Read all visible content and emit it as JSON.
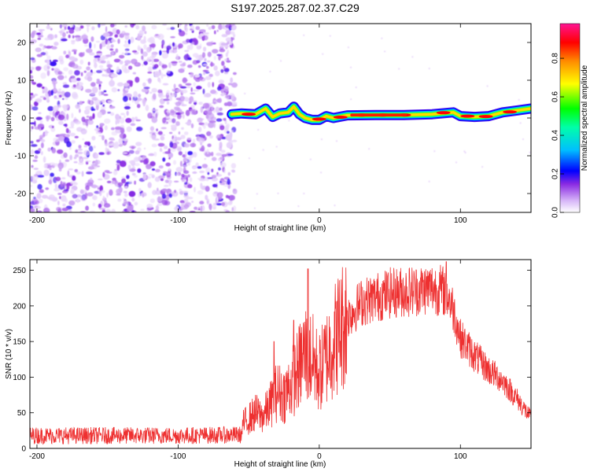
{
  "figure_title": "S197.2025.287.02.37.C29",
  "colors": {
    "snr_line": "#ee3030",
    "colormap": [
      "#f0e0ff",
      "#c89cf5",
      "#8a2be2",
      "#0000ff",
      "#00c8ff",
      "#00ff60",
      "#ffff00",
      "#ff8000",
      "#ff0000",
      "#ff1493"
    ]
  },
  "chart_data": [
    {
      "type": "heatmap",
      "title": "",
      "xlabel": "Height of straight line (km)",
      "ylabel": "Frequency (Hz)",
      "xlim": [
        -205,
        150
      ],
      "ylim": [
        -25,
        25
      ],
      "xticks": [
        -200,
        -100,
        0,
        100
      ],
      "yticks": [
        -20,
        -10,
        0,
        10,
        20
      ],
      "noise_region": {
        "x": [
          -205,
          -62
        ],
        "y": [
          -25,
          25
        ],
        "amplitude": [
          0.0,
          0.25
        ]
      },
      "signal_track": {
        "x": [
          -62,
          -55,
          -45,
          -38,
          -33,
          -28,
          -22,
          -18,
          -14,
          -10,
          -5,
          0,
          5,
          10,
          20,
          40,
          60,
          80,
          95,
          100,
          110,
          120,
          130,
          140,
          150
        ],
        "y": [
          1.0,
          1.2,
          1.0,
          2.5,
          0.3,
          1.2,
          1.5,
          3.0,
          1.0,
          0.0,
          -0.5,
          -0.5,
          0.5,
          0.0,
          0.7,
          0.8,
          0.8,
          1.0,
          1.5,
          0.5,
          0.3,
          0.5,
          1.5,
          2.0,
          2.5
        ],
        "peak_amplitude": 0.98
      },
      "colorbar": {
        "label": "Normalized spectral amplitude",
        "range": [
          0.0,
          0.98
        ],
        "ticks": [
          "0.0",
          "0.2",
          "0.4",
          "0.6",
          "0.8"
        ]
      }
    },
    {
      "type": "line",
      "title": "",
      "xlabel": "Height of straight line (km)",
      "ylabel": "SNR (10 * v/v)",
      "xlim": [
        -205,
        150
      ],
      "ylim": [
        0,
        265
      ],
      "xticks": [
        -200,
        -100,
        0,
        100
      ],
      "yticks": [
        0,
        50,
        100,
        150,
        200,
        250
      ],
      "series": [
        {
          "name": "SNR",
          "x": [
            -205,
            -150,
            -100,
            -55,
            -54,
            -45,
            -40,
            -35,
            -30,
            -25,
            -20,
            -15,
            -10,
            -5,
            0,
            10,
            20,
            30,
            40,
            50,
            60,
            70,
            80,
            90,
            95,
            100,
            110,
            120,
            130,
            140,
            150
          ],
          "y": [
            18,
            18,
            18,
            19,
            35,
            50,
            45,
            60,
            80,
            75,
            90,
            110,
            135,
            125,
            105,
            150,
            185,
            205,
            212,
            218,
            220,
            222,
            225,
            220,
            195,
            155,
            130,
            110,
            95,
            70,
            42
          ]
        }
      ],
      "spikes": [
        {
          "x": -32,
          "y": 150
        },
        {
          "x": -18,
          "y": 180
        },
        {
          "x": -8,
          "y": 252
        },
        {
          "x": 90,
          "y": 262
        }
      ]
    }
  ]
}
